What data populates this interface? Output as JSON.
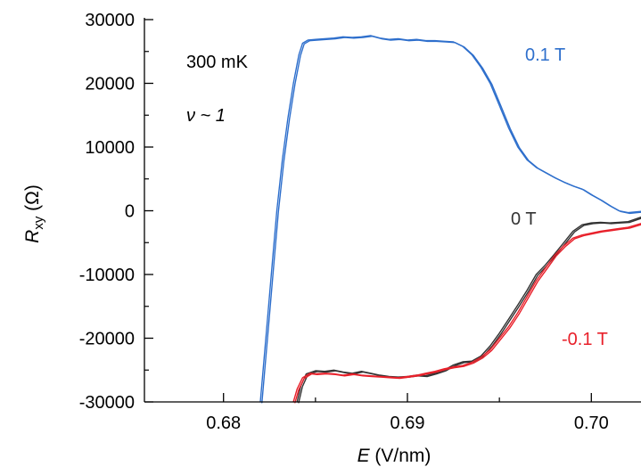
{
  "chart_data": {
    "type": "line",
    "title": "",
    "xlabel": {
      "italic": "E",
      "rest": " (V/nm)"
    },
    "ylabel": {
      "italic": "R",
      "sub": "xy",
      "rest": " (Ω)"
    },
    "xlim": [
      0.6757,
      0.7027
    ],
    "ylim": [
      -30000,
      30000
    ],
    "xticks": [
      0.68,
      0.69,
      0.7
    ],
    "xtick_labels": [
      "0.68",
      "0.69",
      "0.70"
    ],
    "xminor_ticks": [
      0.685,
      0.695
    ],
    "yticks": [
      -30000,
      -20000,
      -10000,
      0,
      10000,
      20000,
      30000
    ],
    "ytick_labels": [
      "-30000",
      "-20000",
      "-10000",
      "0",
      "10000",
      "20000",
      "30000"
    ],
    "yminor_ticks": [
      -25000,
      -15000,
      -5000,
      5000,
      15000,
      25000
    ],
    "grid": false,
    "annotations": [
      {
        "text": "300 mK",
        "color": "#000000"
      },
      {
        "text": "ν ~ 1",
        "color": "#000000"
      },
      {
        "text": "0.1 T",
        "color": "#2e6fcc"
      },
      {
        "text": "0 T",
        "color": "#333333"
      },
      {
        "text": "-0.1 T",
        "color": "#e8202a"
      }
    ],
    "series": [
      {
        "color": "#2e6fcc",
        "x": [
          0.682,
          0.6823,
          0.6826,
          0.6829,
          0.6832,
          0.6835,
          0.6838,
          0.6841,
          0.6843,
          0.6846,
          0.685,
          0.6855,
          0.686,
          0.6865,
          0.687,
          0.6875,
          0.688,
          0.6885,
          0.689,
          0.6895,
          0.69,
          0.6905,
          0.691,
          0.6915,
          0.692,
          0.6925,
          0.693,
          0.6935,
          0.694,
          0.6945,
          0.695,
          0.6955,
          0.696,
          0.6965,
          0.697,
          0.6975,
          0.698,
          0.6985,
          0.699,
          0.6995,
          0.7,
          0.7005,
          0.701,
          0.7015,
          0.702,
          0.7027
        ],
        "y": [
          -30000,
          -20000,
          -10000,
          0,
          8000,
          14500,
          20000,
          24500,
          26300,
          26800,
          26900,
          27000,
          27100,
          27300,
          27200,
          27300,
          27500,
          27100,
          26900,
          27000,
          26800,
          26900,
          26700,
          26700,
          26600,
          26500,
          25800,
          24500,
          22500,
          20000,
          16500,
          13000,
          10000,
          8000,
          6800,
          6000,
          5200,
          4500,
          3900,
          3400,
          2500,
          1700,
          800,
          0,
          -300,
          -100
        ]
      },
      {
        "color": "#333333",
        "x": [
          0.684,
          0.6842,
          0.6845,
          0.685,
          0.6855,
          0.686,
          0.6865,
          0.687,
          0.6875,
          0.688,
          0.6885,
          0.689,
          0.6895,
          0.69,
          0.6905,
          0.691,
          0.6915,
          0.692,
          0.6925,
          0.693,
          0.6935,
          0.694,
          0.6945,
          0.695,
          0.6955,
          0.696,
          0.6965,
          0.697,
          0.6975,
          0.698,
          0.6985,
          0.699,
          0.6995,
          0.7,
          0.7005,
          0.701,
          0.7015,
          0.702,
          0.7027
        ],
        "y": [
          -30000,
          -27500,
          -25600,
          -25100,
          -25200,
          -25000,
          -25300,
          -25500,
          -25200,
          -25500,
          -25800,
          -26000,
          -26100,
          -26000,
          -25800,
          -25900,
          -25500,
          -25000,
          -24200,
          -23700,
          -23600,
          -22800,
          -21200,
          -19200,
          -17000,
          -14800,
          -12500,
          -10000,
          -8500,
          -6800,
          -5000,
          -3200,
          -2200,
          -1900,
          -1800,
          -1900,
          -1800,
          -1700,
          -1000
        ]
      },
      {
        "color": "#e8202a",
        "x": [
          0.6838,
          0.684,
          0.6843,
          0.6847,
          0.685,
          0.6855,
          0.686,
          0.6865,
          0.687,
          0.6875,
          0.688,
          0.6885,
          0.689,
          0.6895,
          0.69,
          0.6905,
          0.691,
          0.6915,
          0.692,
          0.6925,
          0.693,
          0.6935,
          0.694,
          0.6945,
          0.695,
          0.6955,
          0.696,
          0.6965,
          0.697,
          0.6975,
          0.698,
          0.6985,
          0.699,
          0.6995,
          0.7,
          0.7005,
          0.701,
          0.7015,
          0.702,
          0.7027
        ],
        "y": [
          -30000,
          -28000,
          -26200,
          -25500,
          -25600,
          -25500,
          -25600,
          -25800,
          -25600,
          -25800,
          -25900,
          -26000,
          -26100,
          -26200,
          -26000,
          -25800,
          -25500,
          -25200,
          -24800,
          -24500,
          -24300,
          -23800,
          -23000,
          -21800,
          -20000,
          -18200,
          -16000,
          -13500,
          -11000,
          -9000,
          -7000,
          -5500,
          -4300,
          -3800,
          -3500,
          -3200,
          -3000,
          -2800,
          -2600,
          -2000
        ]
      }
    ]
  }
}
